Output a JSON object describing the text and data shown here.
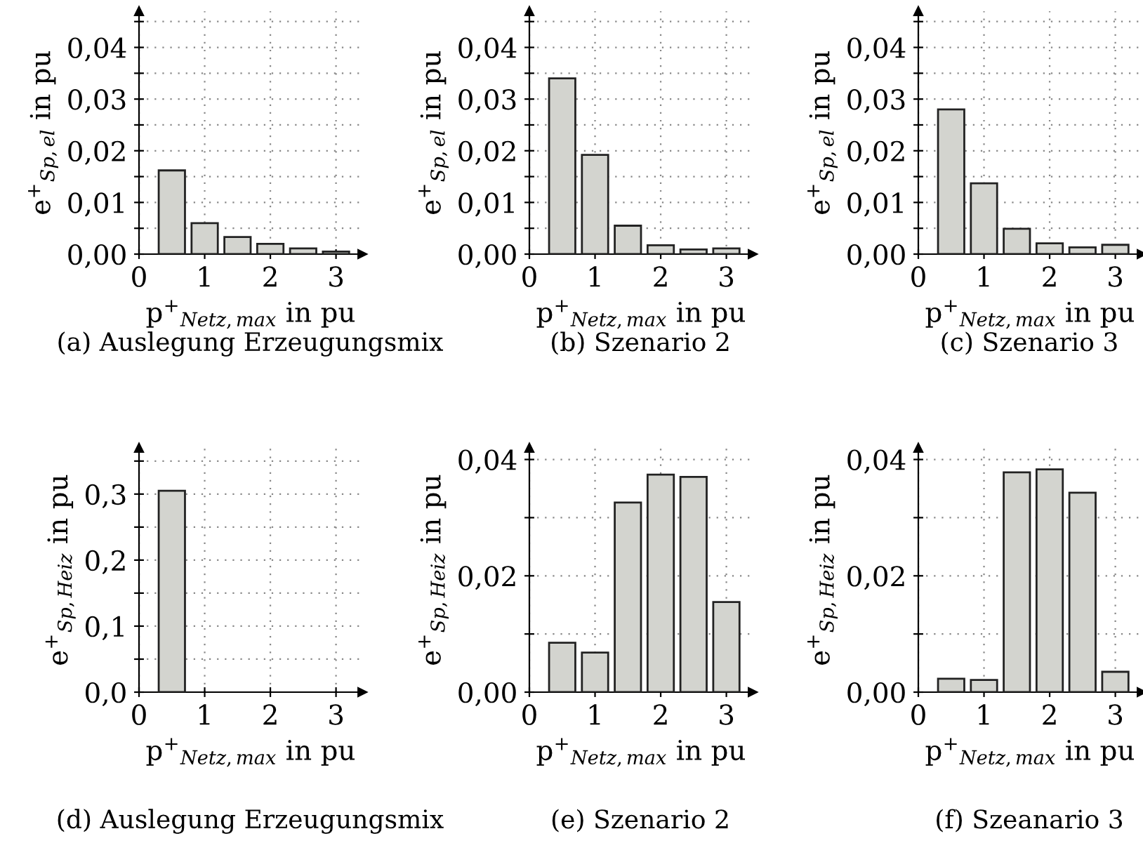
{
  "chart_data": [
    {
      "type": "bar",
      "title": "(a) Auslegung Erzeugungsmix",
      "xlabel": "p$^{+}$$_{Netz,max}$ in pu",
      "ylabel": "e$^{+}$$_{Sp,el}$ in pu",
      "x": [
        0.5,
        1,
        1.5,
        2,
        2.5,
        3
      ],
      "values": [
        0.0162,
        0.006,
        0.0033,
        0.002,
        0.0011,
        0.0005
      ],
      "color": "#d3d4cf",
      "xlim": [
        0,
        3.4
      ],
      "xticks": [
        0,
        1,
        2,
        3
      ],
      "ylim": [
        0,
        0.047
      ],
      "yticks": [
        {
          "value": 0,
          "label": "0,00"
        },
        {
          "value": 0.005,
          "label": null
        },
        {
          "value": 0.01,
          "label": "0,01"
        },
        {
          "value": 0.015,
          "label": null
        },
        {
          "value": 0.02,
          "label": "0,02"
        },
        {
          "value": 0.025,
          "label": null
        },
        {
          "value": 0.03,
          "label": "0,03"
        },
        {
          "value": 0.035,
          "label": null
        },
        {
          "value": 0.04,
          "label": "0,04"
        },
        {
          "value": 0.045,
          "label": null
        }
      ],
      "grid": true
    },
    {
      "type": "bar",
      "title": "(b) Szenario 2",
      "xlabel": "p$^{+}$$_{Netz,max}$ in pu",
      "ylabel": "e$^{+}$$_{Sp,el}$ in pu",
      "x": [
        0.5,
        1,
        1.5,
        2,
        2.5,
        3
      ],
      "values": [
        0.034,
        0.0192,
        0.0055,
        0.0017,
        0.0009,
        0.0011
      ],
      "color": "#d3d4cf",
      "xlim": [
        0,
        3.4
      ],
      "xticks": [
        0,
        1,
        2,
        3
      ],
      "ylim": [
        0,
        0.047
      ],
      "yticks": [
        {
          "value": 0,
          "label": "0,00"
        },
        {
          "value": 0.005,
          "label": null
        },
        {
          "value": 0.01,
          "label": "0,01"
        },
        {
          "value": 0.015,
          "label": null
        },
        {
          "value": 0.02,
          "label": "0,02"
        },
        {
          "value": 0.025,
          "label": null
        },
        {
          "value": 0.03,
          "label": "0,03"
        },
        {
          "value": 0.035,
          "label": null
        },
        {
          "value": 0.04,
          "label": "0,04"
        },
        {
          "value": 0.045,
          "label": null
        }
      ],
      "grid": true
    },
    {
      "type": "bar",
      "title": "(c) Szenario 3",
      "xlabel": "p$^{+}$$_{Netz,max}$ in pu",
      "ylabel": "e$^{+}$$_{Sp,el}$ in pu",
      "x": [
        0.5,
        1,
        1.5,
        2,
        2.5,
        3
      ],
      "values": [
        0.028,
        0.0137,
        0.0049,
        0.0021,
        0.0013,
        0.0018
      ],
      "color": "#d3d4cf",
      "xlim": [
        0,
        3.4
      ],
      "xticks": [
        0,
        1,
        2,
        3
      ],
      "ylim": [
        0,
        0.047
      ],
      "yticks": [
        {
          "value": 0,
          "label": "0,00"
        },
        {
          "value": 0.005,
          "label": null
        },
        {
          "value": 0.01,
          "label": "0,01"
        },
        {
          "value": 0.015,
          "label": null
        },
        {
          "value": 0.02,
          "label": "0,02"
        },
        {
          "value": 0.025,
          "label": null
        },
        {
          "value": 0.03,
          "label": "0,03"
        },
        {
          "value": 0.035,
          "label": null
        },
        {
          "value": 0.04,
          "label": "0,04"
        },
        {
          "value": 0.045,
          "label": null
        }
      ],
      "grid": true
    },
    {
      "type": "bar",
      "title": "(d) Auslegung Erzeugungsmix",
      "xlabel": "p$^{+}$$_{Netz,max}$ in pu",
      "ylabel": "e$^{+}$$_{Sp,Heiz}$ in pu",
      "x": [
        0.5
      ],
      "values": [
        0.305
      ],
      "color": "#d3d4cf",
      "xlim": [
        0,
        3.4
      ],
      "xticks": [
        0,
        1,
        2,
        3
      ],
      "ylim": [
        0,
        0.37
      ],
      "yticks": [
        {
          "value": 0,
          "label": "0,0"
        },
        {
          "value": 0.05,
          "label": null
        },
        {
          "value": 0.1,
          "label": "0,1"
        },
        {
          "value": 0.15,
          "label": null
        },
        {
          "value": 0.2,
          "label": "0,2"
        },
        {
          "value": 0.25,
          "label": null
        },
        {
          "value": 0.3,
          "label": "0,3"
        },
        {
          "value": 0.35,
          "label": null
        }
      ],
      "grid": true
    },
    {
      "type": "bar",
      "title": "(e) Szenario 2",
      "xlabel": "p$^{+}$$_{Netz,max}$ in pu",
      "ylabel": "e$^{+}$$_{Sp,Heiz}$ in pu",
      "x": [
        0.5,
        1,
        1.5,
        2,
        2.5,
        3
      ],
      "values": [
        0.0085,
        0.0068,
        0.0326,
        0.0374,
        0.037,
        0.0155
      ],
      "color": "#d3d4cf",
      "xlim": [
        0,
        3.4
      ],
      "xticks": [
        0,
        1,
        2,
        3
      ],
      "ylim": [
        0,
        0.042
      ],
      "yticks": [
        {
          "value": 0,
          "label": "0,00"
        },
        {
          "value": 0.01,
          "label": null
        },
        {
          "value": 0.02,
          "label": "0,02"
        },
        {
          "value": 0.03,
          "label": null
        },
        {
          "value": 0.04,
          "label": "0,04"
        }
      ],
      "grid": true
    },
    {
      "type": "bar",
      "title": "(f) Szeanario 3",
      "xlabel": "p$^{+}$$_{Netz,max}$ in pu",
      "ylabel": "e$^{+}$$_{Sp,Heiz}$ in pu",
      "x": [
        0.5,
        1,
        1.5,
        2,
        2.5,
        3
      ],
      "values": [
        0.0023,
        0.0021,
        0.0378,
        0.0383,
        0.0343,
        0.0035
      ],
      "color": "#d3d4cf",
      "xlim": [
        0,
        3.4
      ],
      "xticks": [
        0,
        1,
        2,
        3
      ],
      "ylim": [
        0,
        0.042
      ],
      "yticks": [
        {
          "value": 0,
          "label": "0,00"
        },
        {
          "value": 0.01,
          "label": null
        },
        {
          "value": 0.02,
          "label": "0,02"
        },
        {
          "value": 0.03,
          "label": null
        },
        {
          "value": 0.04,
          "label": "0,04"
        }
      ],
      "grid": true
    }
  ]
}
